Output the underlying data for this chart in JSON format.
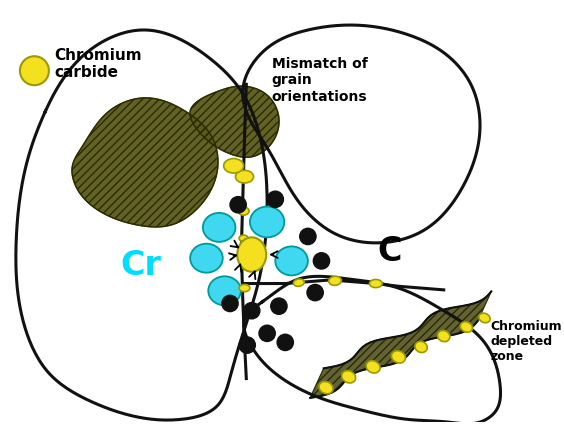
{
  "bg_color": "#ffffff",
  "carbide_fill": "#5a5a1a",
  "carbide_edge": "#2a2a00",
  "yellow_color": "#f5e020",
  "yellow_edge": "#999900",
  "cyan_color": "#40d8f0",
  "cyan_edge": "#009999",
  "black_color": "#111111",
  "grain_edge_color": "#111111",
  "depleted_zone_color": "#555522",
  "label_chromium_carbide": "Chromium\ncarbide",
  "label_mismatch": "Mismatch of\ngrain\norientations",
  "label_Cr": "Cr",
  "label_C": "C",
  "label_depleted": "Chromium\ndepleted\nzone"
}
